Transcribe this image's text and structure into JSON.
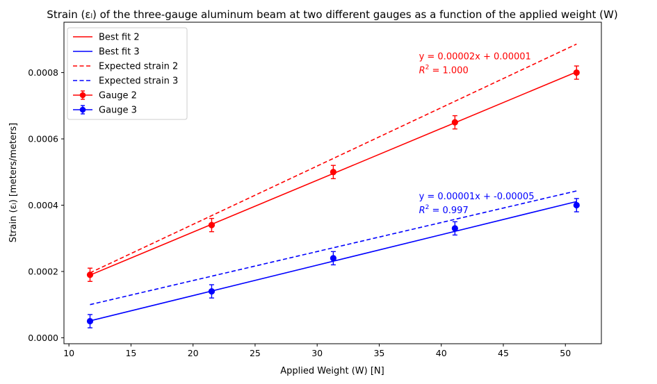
{
  "chart_data": {
    "type": "scatter",
    "title": "Strain (εₗ) of the three-gauge aluminum beam at two different gauges as a function of the applied weight (W)",
    "xlabel": "Applied Weight (W) [N]",
    "ylabel": "Strain (εₗ) [meters/meters]",
    "xlim": [
      9.6,
      52.9
    ],
    "ylim": [
      -1.8e-05,
      0.000952
    ],
    "xticks": [
      10,
      15,
      20,
      25,
      30,
      35,
      40,
      45,
      50
    ],
    "xtick_labels": [
      "10",
      "15",
      "20",
      "25",
      "30",
      "35",
      "40",
      "45",
      "50"
    ],
    "yticks": [
      0,
      0.0002,
      0.0004,
      0.0006,
      0.0008
    ],
    "ytick_labels": [
      "0.0000",
      "0.0002",
      "0.0004",
      "0.0006",
      "0.0008"
    ],
    "grid": false,
    "legend_position": "top-left",
    "series": [
      {
        "name": "Best fit 2",
        "kind": "line",
        "style": "solid",
        "color": "#ff0000",
        "x": [
          11.7,
          50.9
        ],
        "y": [
          0.000189,
          0.000802
        ]
      },
      {
        "name": "Best fit 3",
        "kind": "line",
        "style": "solid",
        "color": "#0000ff",
        "x": [
          11.7,
          50.9
        ],
        "y": [
          5.1e-05,
          0.000411
        ]
      },
      {
        "name": "Expected strain 2",
        "kind": "line",
        "style": "dashed",
        "color": "#ff0000",
        "x": [
          11.7,
          50.9
        ],
        "y": [
          0.000196,
          0.000886
        ]
      },
      {
        "name": "Expected strain 3",
        "kind": "line",
        "style": "dashed",
        "color": "#0000ff",
        "x": [
          11.7,
          50.9
        ],
        "y": [
          0.0001,
          0.000443
        ]
      },
      {
        "name": "Gauge 2",
        "kind": "errorbar",
        "color": "#ff0000",
        "x": [
          11.7,
          21.5,
          31.3,
          41.1,
          50.9
        ],
        "y": [
          0.00019,
          0.00034,
          0.0005,
          0.00065,
          0.0008
        ],
        "yerr": 2e-05
      },
      {
        "name": "Gauge 3",
        "kind": "errorbar",
        "color": "#0000ff",
        "x": [
          11.7,
          21.5,
          31.3,
          41.1,
          50.9
        ],
        "y": [
          5e-05,
          0.00014,
          0.00024,
          0.00033,
          0.0004
        ],
        "yerr": 2e-05
      }
    ],
    "annotations": [
      {
        "text": "y = 0.00002x + 0.00001",
        "r2_label": "R",
        "r2_exp": "2",
        "r2_value": " = 1.000",
        "color": "#ff0000",
        "x": 38.2,
        "y": 0.00084
      },
      {
        "text": "y = 0.00001x + -0.00005",
        "r2_label": "R",
        "r2_exp": "2",
        "r2_value": " = 0.997",
        "color": "#0000ff",
        "x": 38.2,
        "y": 0.000418
      }
    ]
  }
}
